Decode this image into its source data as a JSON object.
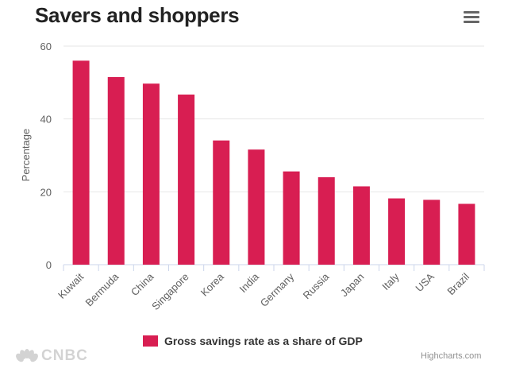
{
  "title": "Savers and shoppers",
  "menu_icon": "hamburger-menu-icon",
  "credits": "Highcharts.com",
  "logo_text": "CNBC",
  "colors": {
    "bar": "#d81e52",
    "grid": "#e6e6e6",
    "axis_text": "#606060"
  },
  "chart_data": {
    "type": "bar",
    "title": "Savers and shoppers",
    "xlabel": "",
    "ylabel": "Percentage",
    "ylim": [
      0,
      60
    ],
    "yticks": [
      0,
      20,
      40,
      60
    ],
    "grid": true,
    "legend_position": "bottom-center",
    "categories": [
      "Kuwait",
      "Bermuda",
      "China",
      "Singapore",
      "Korea",
      "India",
      "Germany",
      "Russia",
      "Japan",
      "Italy",
      "USA",
      "Brazil"
    ],
    "series": [
      {
        "name": "Gross savings rate as a share of GDP",
        "values": [
          56,
          51.5,
          49.7,
          46.7,
          34.1,
          31.6,
          25.6,
          24.0,
          21.5,
          18.2,
          17.8,
          16.7
        ]
      }
    ]
  }
}
